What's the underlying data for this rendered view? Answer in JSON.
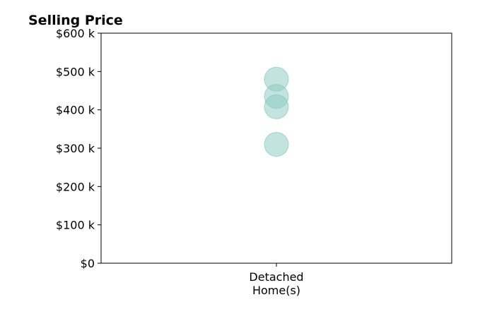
{
  "chart_data": {
    "type": "scatter",
    "title": "Selling Price",
    "xlabel": "",
    "ylabel": "",
    "categories": [
      "Detached\nHome(s)"
    ],
    "y_tick_labels": [
      "$0",
      "$100 k",
      "$200 k",
      "$300 k",
      "$400 k",
      "$500 k",
      "$600 k"
    ],
    "y_ticks": [
      0,
      100000,
      200000,
      300000,
      400000,
      500000,
      600000
    ],
    "ylim": [
      0,
      600000
    ],
    "grid": false,
    "series": [
      {
        "category": "Detached\nHome(s)",
        "values": [
          480000,
          435000,
          408000,
          310000
        ]
      }
    ],
    "colors": {
      "point_fill": "#8fccc3",
      "point_stroke": "#7fc2b8",
      "axis": "#000000"
    }
  }
}
